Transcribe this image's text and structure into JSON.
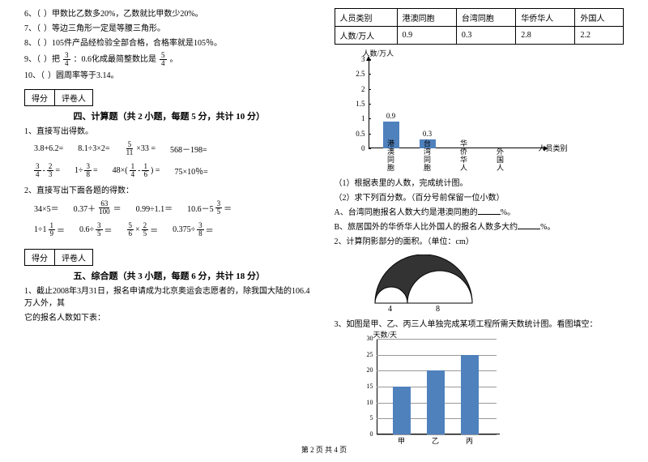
{
  "left": {
    "judge": [
      {
        "n": "6、（",
        "p": "）甲数比乙数多20%，乙数就比甲数少20%。"
      },
      {
        "n": "7、（",
        "p": "）等边三角形一定是等腰三角形。"
      },
      {
        "n": "8、（",
        "p": "）105件产品经检验全部合格，合格率就是105％。"
      },
      {
        "n": "9、（",
        "p": "）把",
        "mid": "：0.6化成最简整数比是",
        "suf": "。"
      },
      {
        "n": "10、（",
        "p": "）圆周率等于3.14。"
      }
    ],
    "fracA": {
      "n": "3",
      "d": "4"
    },
    "fracB": {
      "n": "5",
      "d": "4"
    },
    "score": {
      "a": "得分",
      "b": "评卷人"
    },
    "sec4": "四、计算题（共 2 小题，每题 5 分，共计 10 分）",
    "sub41": "1、直接写出得数。",
    "row41": [
      "3.8+6.2=",
      "8.1÷3×2=",
      "",
      "568－198="
    ],
    "row41f": {
      "n": "5",
      "d": "11",
      "txt": "×33 ="
    },
    "row42a": {
      "a": {
        "n": "3",
        "d": "4"
      },
      "b": {
        "n": "2",
        "d": "3"
      }
    },
    "row42b": {
      "n": "3",
      "d": "8"
    },
    "row42c": {
      "a": {
        "n": "1",
        "d": "4"
      },
      "b": {
        "n": "1",
        "d": "6"
      }
    },
    "row42d": "75×10％=",
    "sub42": "2、直接写出下面各题的得数：",
    "row43": [
      "34×5＝",
      "0.37＋",
      "0.99÷1.1＝",
      "10.6－5"
    ],
    "row43f1": {
      "n": "63",
      "d": "100"
    },
    "row43f2": {
      "n": "3",
      "d": "5"
    },
    "row44a": {
      "n": "1",
      "d": "9"
    },
    "row44b": {
      "n": "3",
      "d": "5"
    },
    "row44c": {
      "a": {
        "n": "5",
        "d": "6"
      },
      "b": {
        "n": "2",
        "d": "5"
      }
    },
    "row44d": {
      "n": "3",
      "d": "8"
    },
    "sec5": "五、综合题（共 3 小题，每题 6 分，共计 18 分）",
    "sub51a": "1、截止2008年3月31日，报名申请成为北京奥运会志愿者的，除我国大陆的106.4万人外，其",
    "sub51b": "它的报名人数如下表："
  },
  "right": {
    "table": {
      "headers": [
        "人员类别",
        "港澳同胞",
        "台湾同胞",
        "华侨华人",
        "外国人"
      ],
      "row": [
        "人数/万人",
        "0.9",
        "0.3",
        "2.8",
        "2.2"
      ]
    },
    "chart1": {
      "ytitle": "人数/万人",
      "xtitle": "人员类别",
      "ylim": [
        0,
        3
      ],
      "ystep": 0.5,
      "yticks": [
        0,
        0.5,
        1,
        1.5,
        2,
        2.5,
        3
      ],
      "bars": [
        {
          "label": "港澳同胞",
          "val": 0.9,
          "show": "0.9"
        },
        {
          "label": "台湾同胞",
          "val": 0.3,
          "show": "0.3"
        },
        {
          "label": "华侨华人",
          "val": null,
          "show": ""
        },
        {
          "label": "外国人",
          "val": null,
          "show": ""
        }
      ],
      "bar_color": "#4f81bd",
      "bg": "#ffffff"
    },
    "q1a": "（1）根据表里的人数，完成统计图。",
    "q1b": "（2）求下列百分数。（百分号前保留一位小数）",
    "q1c": "A、台湾同胞报名人数大约是港澳同胞的",
    "q1cs": "%。",
    "q1d": "B、旅居国外的华侨华人比外国人的报名人数多大约",
    "q1ds": "%。",
    "q2": "2、计算阴影部分的面积。（单位：cm）",
    "semi": {
      "r_left": "4",
      "r_right": "8"
    },
    "q3": "3、如图是甲、乙、丙三人单独完成某项工程所需天数统计图。看图填空：",
    "chart2": {
      "ytitle": "天数/天",
      "yticks": [
        0,
        5,
        10,
        15,
        20,
        25,
        30
      ],
      "bars": [
        {
          "label": "甲",
          "val": 15
        },
        {
          "label": "乙",
          "val": 20
        },
        {
          "label": "丙",
          "val": 25
        }
      ],
      "bar_color": "#4f81bd",
      "grid": "#999999"
    }
  },
  "footer": "第 2 页 共 4 页"
}
